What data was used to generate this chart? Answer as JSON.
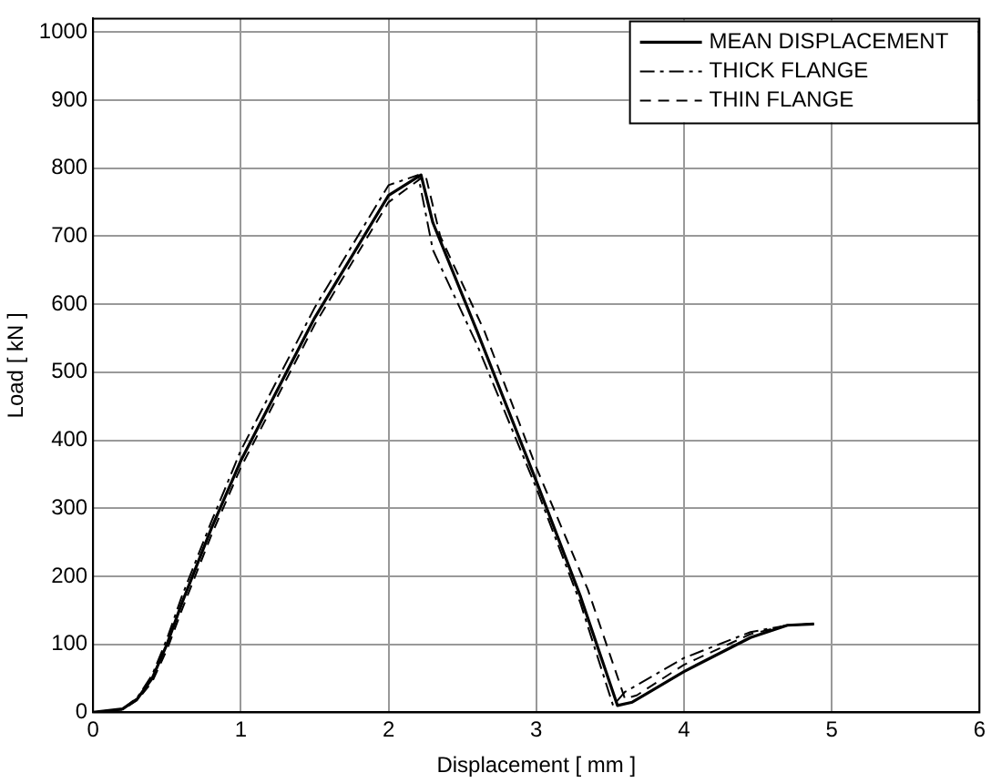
{
  "chart_data": {
    "type": "line",
    "xlabel": "Displacement [ mm ]",
    "ylabel": "Load [ kN ]",
    "xlim": [
      0,
      6
    ],
    "xticks": [
      0,
      1,
      2,
      3,
      4,
      5,
      6
    ],
    "ylim": [
      0,
      1020
    ],
    "yticks": [
      0,
      100,
      200,
      300,
      400,
      500,
      600,
      700,
      800,
      900,
      1000
    ],
    "grid": true,
    "legend": "top right",
    "marker": "none",
    "series": [
      {
        "name": "MEAN DISPLACEMENT",
        "color": "#000000",
        "line_style": "solid",
        "x": [
          0,
          0.2,
          0.3,
          0.4,
          0.5,
          0.6,
          0.8,
          1,
          1.5,
          2,
          2.22,
          2.3,
          2.6,
          3,
          3.3,
          3.55,
          3.65,
          4,
          4.45,
          4.7,
          4.88
        ],
        "values": [
          0,
          5,
          20,
          50,
          100,
          160,
          270,
          370,
          580,
          760,
          790,
          720,
          560,
          340,
          170,
          10,
          15,
          60,
          110,
          128,
          130
        ]
      },
      {
        "name": "THICK FLANGE",
        "color": "#000000",
        "line_style": "dashdot",
        "x": [
          0,
          0.2,
          0.3,
          0.4,
          0.5,
          0.6,
          0.8,
          1,
          1.5,
          2,
          2.2,
          2.3,
          2.6,
          3,
          3.3,
          3.52,
          3.6,
          4,
          4.45,
          4.7,
          4.88
        ],
        "values": [
          0,
          5,
          22,
          55,
          108,
          170,
          280,
          385,
          595,
          775,
          790,
          680,
          540,
          330,
          160,
          10,
          30,
          80,
          118,
          128,
          130
        ]
      },
      {
        "name": "THIN FLANGE",
        "color": "#000000",
        "line_style": "dashed",
        "x": [
          0,
          0.2,
          0.3,
          0.4,
          0.5,
          0.6,
          0.8,
          1,
          1.5,
          2,
          2.25,
          2.35,
          2.65,
          3,
          3.35,
          3.6,
          3.68,
          4,
          4.45,
          4.7,
          4.88
        ],
        "values": [
          0,
          4,
          18,
          45,
          92,
          150,
          260,
          360,
          570,
          750,
          790,
          700,
          560,
          360,
          180,
          20,
          25,
          70,
          115,
          128,
          130
        ]
      }
    ]
  }
}
